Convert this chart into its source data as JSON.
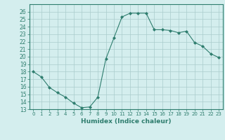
{
  "xlabel": "Humidex (Indice chaleur)",
  "ylabel": "",
  "x": [
    0,
    1,
    2,
    3,
    4,
    5,
    6,
    7,
    8,
    9,
    10,
    11,
    12,
    13,
    14,
    15,
    16,
    17,
    18,
    19,
    20,
    21,
    22,
    23
  ],
  "y": [
    18,
    17.3,
    15.9,
    15.2,
    14.6,
    13.8,
    13.2,
    13.3,
    14.6,
    19.7,
    22.5,
    25.3,
    25.8,
    25.8,
    25.8,
    23.6,
    23.6,
    23.5,
    23.2,
    23.4,
    21.9,
    21.4,
    20.4,
    19.9
  ],
  "line_color": "#2e7d6e",
  "marker_color": "#2e7d6e",
  "bg_color": "#d4eeee",
  "grid_color": "#aacccc",
  "tick_color": "#2e7d6e",
  "ylim": [
    13,
    27
  ],
  "yticks": [
    13,
    14,
    15,
    16,
    17,
    18,
    19,
    20,
    21,
    22,
    23,
    24,
    25,
    26
  ],
  "xlim": [
    -0.5,
    23.5
  ],
  "xticks": [
    0,
    1,
    2,
    3,
    4,
    5,
    6,
    7,
    8,
    9,
    10,
    11,
    12,
    13,
    14,
    15,
    16,
    17,
    18,
    19,
    20,
    21,
    22,
    23
  ]
}
